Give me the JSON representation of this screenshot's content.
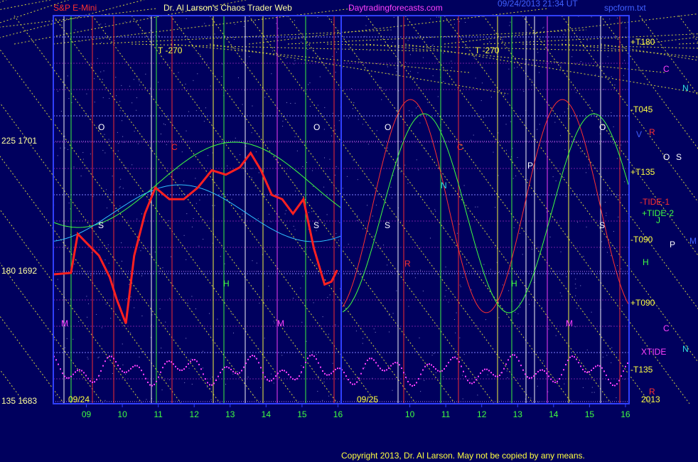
{
  "chart_data": {
    "type": "line",
    "xlim": [
      0.08,
      16.1
    ],
    "xticks": [
      {
        "value": 1,
        "label": "09"
      },
      {
        "value": 2,
        "label": "10"
      },
      {
        "value": 3,
        "label": "11"
      },
      {
        "value": 4,
        "label": "12"
      },
      {
        "value": 5,
        "label": "13"
      },
      {
        "value": 6,
        "label": "14"
      },
      {
        "value": 7,
        "label": "15"
      },
      {
        "value": 8,
        "label": "16"
      },
      {
        "value": 10,
        "label": "10"
      },
      {
        "value": 11,
        "label": "11"
      },
      {
        "value": 12,
        "label": "12"
      },
      {
        "value": 13,
        "label": "13"
      },
      {
        "value": 14,
        "label": "14"
      },
      {
        "value": 15,
        "label": "15"
      },
      {
        "value": 16,
        "label": "16"
      }
    ],
    "ylim": [
      1682.85,
      1709.7
    ],
    "yticks": [
      {
        "value": 1683,
        "label": "135  1683"
      },
      {
        "value": 1692,
        "label": "180  1692"
      },
      {
        "value": 1701,
        "label": "225  1701"
      }
    ],
    "series": [
      {
        "color": "#ff2020",
        "x": [
          0.08,
          0.57,
          0.76,
          1.35,
          1.65,
          1.84,
          2.1,
          2.33,
          2.63,
          2.92,
          3.31,
          3.71,
          4.1,
          4.49,
          4.88,
          5.27,
          5.57,
          5.86,
          6.16,
          6.45,
          6.75,
          7.04,
          7.33,
          7.63,
          7.82,
          7.98
        ],
        "values": [
          1691.8,
          1691.9,
          1694.6,
          1693.1,
          1691.6,
          1690.1,
          1688.4,
          1693.1,
          1696.0,
          1697.8,
          1697.0,
          1697.0,
          1697.8,
          1699.0,
          1698.7,
          1699.2,
          1700.2,
          1699.0,
          1697.3,
          1697.0,
          1696.0,
          1697.0,
          1693.6,
          1691.1,
          1691.3,
          1692.1
        ]
      }
    ],
    "annotations": [
      {
        "text": "S&P E-Mini",
        "color": "#ff3030"
      },
      {
        "text": "Dr. Al Larson's Chaos Trader Web",
        "color": "#ffffa0"
      },
      {
        "text": "Daytradingforecasts.com",
        "color": "#ff40ff"
      },
      {
        "text": "09/24/2013 21:34 UT",
        "color": "#4060ff"
      },
      {
        "text": "spcform.txt",
        "color": "#4060ff"
      },
      {
        "text": "T -270",
        "color": "#ffff40"
      },
      {
        "text": "T -270",
        "color": "#ffff40"
      },
      {
        "text": "+T180",
        "color": "#ffff40"
      },
      {
        "text": "C",
        "color": "#ff40ff"
      },
      {
        "text": "N",
        "color": "#30e0e0"
      },
      {
        "text": "-T045",
        "color": "#ffff40"
      },
      {
        "text": "R",
        "color": "#ff3030"
      },
      {
        "text": "V",
        "color": "#4060ff"
      },
      {
        "text": "O",
        "color": "#ffffff"
      },
      {
        "text": "S",
        "color": "#ffffff"
      },
      {
        "text": "+T135",
        "color": "#ffff40"
      },
      {
        "text": "-TIDE-1",
        "color": "#ff3030"
      },
      {
        "text": "+TIDE-2",
        "color": "#40ff40"
      },
      {
        "text": "J",
        "color": "#40ff40"
      },
      {
        "text": "-T090",
        "color": "#ffff40"
      },
      {
        "text": "P",
        "color": "#ffffff"
      },
      {
        "text": "M",
        "color": "#4060ff"
      },
      {
        "text": "H",
        "color": "#40ff40"
      },
      {
        "text": "+T090",
        "color": "#ffff40"
      },
      {
        "text": "C",
        "color": "#ff40ff"
      },
      {
        "text": "N",
        "color": "#30e0e0"
      },
      {
        "text": "XTIDE",
        "color": "#ff40ff"
      },
      {
        "text": "-T135",
        "color": "#ffff40"
      },
      {
        "text": "R",
        "color": "#ff3030"
      },
      {
        "text": "2013",
        "color": "#ffff40"
      },
      {
        "text": "09/24",
        "color": "#ffff40"
      },
      {
        "text": "09/25",
        "color": "#ffff40"
      },
      {
        "text": "O",
        "color": "#ffffff"
      },
      {
        "text": "C",
        "color": "#ff3030"
      },
      {
        "text": "S",
        "color": "#ffffff"
      },
      {
        "text": "M",
        "color": "#ff40ff"
      },
      {
        "text": "H",
        "color": "#40ff40"
      },
      {
        "text": "O",
        "color": "#ffffff"
      },
      {
        "text": "S",
        "color": "#ffffff"
      },
      {
        "text": "M",
        "color": "#ff40ff"
      },
      {
        "text": "O",
        "color": "#ffffff"
      },
      {
        "text": "C",
        "color": "#ff3030"
      },
      {
        "text": "N",
        "color": "#30e0e0"
      },
      {
        "text": "S",
        "color": "#ffffff"
      },
      {
        "text": "R",
        "color": "#ff3030"
      },
      {
        "text": "H",
        "color": "#40ff40"
      },
      {
        "text": "P",
        "color": "#ffffff"
      },
      {
        "text": "M",
        "color": "#ff40ff"
      },
      {
        "text": "O",
        "color": "#ffffff"
      },
      {
        "text": "S",
        "color": "#ffffff"
      },
      {
        "text": "Copyright 2013, Dr. Al Larson. May not be copied by any means.",
        "color": "#ffff40"
      }
    ]
  }
}
